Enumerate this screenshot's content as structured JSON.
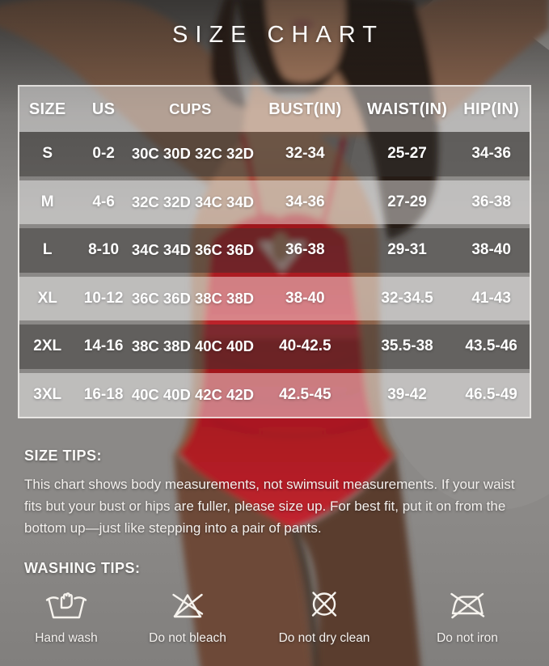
{
  "title": "SIZE CHART",
  "chart_data": {
    "type": "table",
    "title": "SIZE CHART",
    "columns": [
      "SIZE",
      "US",
      "CUPS",
      "BUST(IN)",
      "WAIST(IN)",
      "HIP(IN)"
    ],
    "rows": [
      [
        "S",
        "0-2",
        "30C 30D 32C 32D",
        "32-34",
        "25-27",
        "34-36"
      ],
      [
        "M",
        "4-6",
        "32C 32D 34C 34D",
        "34-36",
        "27-29",
        "36-38"
      ],
      [
        "L",
        "8-10",
        "34C 34D 36C 36D",
        "36-38",
        "29-31",
        "38-40"
      ],
      [
        "XL",
        "10-12",
        "36C 36D 38C 38D",
        "38-40",
        "32-34.5",
        "41-43"
      ],
      [
        "2XL",
        "14-16",
        "38C 38D 40C 40D",
        "40-42.5",
        "35.5-38",
        "43.5-46"
      ],
      [
        "3XL",
        "16-18",
        "40C 40D 42C 42D",
        "42.5-45",
        "39-42",
        "46.5-49"
      ]
    ],
    "layout_hints": {
      "header_background": "translucent-white",
      "row_backgrounds_alternate": [
        "translucent-dark-gray",
        "translucent-white"
      ],
      "grid": false
    }
  },
  "size_tips": {
    "heading": "SIZE TIPS:",
    "body": "This chart shows body measurements, not swimsuit measurements. If your waist fits but your bust or hips are fuller, please size up. For best fit, put it on from the bottom up—just like stepping into a pair of pants."
  },
  "washing_tips": {
    "heading": "WASHING TIPS:",
    "items": [
      {
        "icon": "hand-wash-icon",
        "label": "Hand wash"
      },
      {
        "icon": "do-not-bleach-icon",
        "label": "Do not bleach"
      },
      {
        "icon": "do-not-dry-clean-icon",
        "label": "Do not dry clean"
      },
      {
        "icon": "do-not-iron-icon",
        "label": "Do not iron"
      }
    ]
  },
  "colors": {
    "swimsuit_red": "#c0222b",
    "backdrop_gray": "#8a8886",
    "text_white": "#ffffff",
    "table_border": "rgba(252,250,248,0.82)",
    "row_dark_overlay": "rgba(52,50,49,0.48)",
    "row_light_overlay": "rgba(255,255,255,0.44)"
  }
}
